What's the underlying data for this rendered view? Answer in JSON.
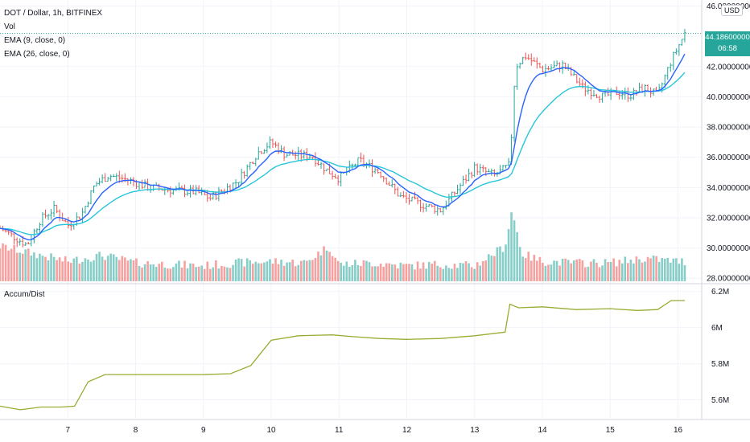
{
  "panes": {
    "price_title": "DOT / Dollar, 1h, BITFINEX",
    "vol_label": "Vol",
    "ema9_label": "EMA (9, close, 0)",
    "ema26_label": "EMA (26, close, 0)",
    "accum_label": "Accum/Dist",
    "currency": "USD"
  },
  "last_price": {
    "value": "44.18600000",
    "countdown": "06:58"
  },
  "colors": {
    "up": "#26a69a",
    "down": "#ef5350",
    "ema9": "#2962ff",
    "ema26": "#26c6da",
    "accum": "#9aab30"
  },
  "chart_data": [
    {
      "type": "candlestick-ohlc-bars",
      "title": "DOT / Dollar, 1h, BITFINEX",
      "x_tick_labels": [
        "7",
        "8",
        "9",
        "10",
        "11",
        "12",
        "13",
        "14",
        "15",
        "16"
      ],
      "y_tick_labels": [
        "28.00000000",
        "30.00000000",
        "32.00000000",
        "34.00000000",
        "36.00000000",
        "38.00000000",
        "40.00000000",
        "42.00000000",
        "44.00000000",
        "46.00000000"
      ],
      "ylim": [
        27.8,
        46.4
      ],
      "close_keyframes": [
        [
          6.0,
          31.3
        ],
        [
          6.4,
          30.2
        ],
        [
          6.6,
          31.9
        ],
        [
          6.8,
          32.6
        ],
        [
          7.0,
          31.5
        ],
        [
          7.2,
          32.2
        ],
        [
          7.4,
          34.2
        ],
        [
          7.6,
          34.8
        ],
        [
          7.9,
          34.5
        ],
        [
          8.2,
          34.0
        ],
        [
          8.6,
          33.8
        ],
        [
          8.9,
          33.7
        ],
        [
          9.1,
          33.3
        ],
        [
          9.5,
          34.4
        ],
        [
          9.8,
          36.3
        ],
        [
          10.0,
          37.0
        ],
        [
          10.2,
          36.2
        ],
        [
          10.6,
          36.1
        ],
        [
          10.8,
          35.2
        ],
        [
          11.0,
          34.6
        ],
        [
          11.3,
          35.8
        ],
        [
          11.6,
          35.0
        ],
        [
          11.9,
          33.4
        ],
        [
          12.2,
          32.9
        ],
        [
          12.5,
          32.5
        ],
        [
          12.8,
          34.2
        ],
        [
          13.0,
          35.3
        ],
        [
          13.3,
          34.8
        ],
        [
          13.52,
          35.5
        ],
        [
          13.6,
          42.0
        ],
        [
          13.75,
          42.7
        ],
        [
          14.0,
          41.8
        ],
        [
          14.3,
          42.1
        ],
        [
          14.6,
          40.6
        ],
        [
          14.9,
          40.0
        ],
        [
          15.1,
          40.3
        ],
        [
          15.3,
          40.1
        ],
        [
          15.5,
          40.6
        ],
        [
          15.7,
          40.1
        ],
        [
          15.9,
          42.4
        ],
        [
          16.1,
          44.19
        ]
      ],
      "volume_keyframes": [
        [
          6.0,
          30.0
        ],
        [
          6.5,
          29.5
        ],
        [
          7.0,
          29.0
        ],
        [
          7.5,
          29.4
        ],
        [
          8.0,
          28.9
        ],
        [
          8.5,
          28.8
        ],
        [
          9.0,
          28.7
        ],
        [
          9.5,
          28.9
        ],
        [
          10.0,
          29.0
        ],
        [
          10.5,
          28.9
        ],
        [
          10.85,
          30.0
        ],
        [
          11.0,
          28.8
        ],
        [
          11.5,
          28.9
        ],
        [
          12.0,
          28.7
        ],
        [
          12.5,
          28.8
        ],
        [
          13.0,
          28.7
        ],
        [
          13.45,
          30.0
        ],
        [
          13.55,
          32.4
        ],
        [
          13.7,
          29.5
        ],
        [
          14.0,
          29.0
        ],
        [
          14.5,
          28.9
        ],
        [
          15.0,
          28.9
        ],
        [
          15.5,
          29.2
        ],
        [
          16.0,
          29.0
        ]
      ]
    },
    {
      "type": "line",
      "title": "Accum/Dist",
      "series": [
        {
          "name": "Accum/Dist",
          "points": [
            [
              6.0,
              5.565
            ],
            [
              6.3,
              5.545
            ],
            [
              6.6,
              5.56
            ],
            [
              6.9,
              5.56
            ],
            [
              7.1,
              5.565
            ],
            [
              7.3,
              5.7
            ],
            [
              7.55,
              5.74
            ],
            [
              8.0,
              5.74
            ],
            [
              8.5,
              5.74
            ],
            [
              9.0,
              5.74
            ],
            [
              9.4,
              5.745
            ],
            [
              9.7,
              5.79
            ],
            [
              10.0,
              5.93
            ],
            [
              10.4,
              5.955
            ],
            [
              10.9,
              5.96
            ],
            [
              11.2,
              5.95
            ],
            [
              11.6,
              5.94
            ],
            [
              12.0,
              5.935
            ],
            [
              12.5,
              5.94
            ],
            [
              13.0,
              5.955
            ],
            [
              13.45,
              5.975
            ],
            [
              13.52,
              6.13
            ],
            [
              13.65,
              6.11
            ],
            [
              14.0,
              6.115
            ],
            [
              14.5,
              6.1
            ],
            [
              15.0,
              6.105
            ],
            [
              15.4,
              6.095
            ],
            [
              15.7,
              6.1
            ],
            [
              15.9,
              6.15
            ],
            [
              16.1,
              6.15
            ]
          ]
        }
      ],
      "y_tick_labels": [
        "5.6M",
        "5.8M",
        "6M",
        "6.2M"
      ],
      "ylim": [
        5.5,
        6.23
      ]
    }
  ]
}
